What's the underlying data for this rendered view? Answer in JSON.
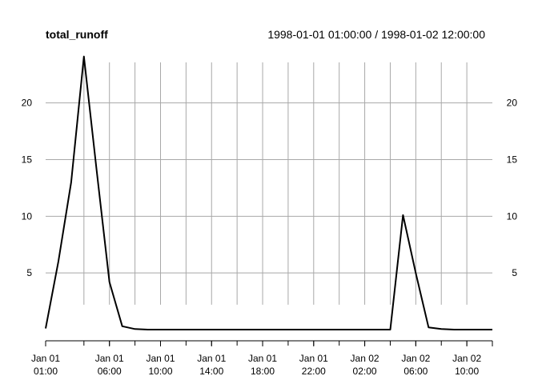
{
  "chart_data": {
    "type": "line",
    "title": "total_runoff",
    "date_range_label": "1998-01-01 01:00:00 / 1998-01-02 12:00:00",
    "x_start": "1998-01-01 01:00",
    "x_end": "1998-01-02 12:00",
    "ylim": [
      0,
      24
    ],
    "grid": true,
    "y_ticks": [
      5,
      10,
      15,
      20
    ],
    "y_tick_labels": [
      "5",
      "10",
      "15",
      "20"
    ],
    "x_ticks": [
      {
        "line1": "Jan 01",
        "line2": "01:00",
        "time": "1998-01-01 01:00"
      },
      {
        "line1": "Jan 01",
        "line2": "06:00",
        "time": "1998-01-01 06:00"
      },
      {
        "line1": "Jan 01",
        "line2": "10:00",
        "time": "1998-01-01 10:00"
      },
      {
        "line1": "Jan 01",
        "line2": "14:00",
        "time": "1998-01-01 14:00"
      },
      {
        "line1": "Jan 01",
        "line2": "18:00",
        "time": "1998-01-01 18:00"
      },
      {
        "line1": "Jan 01",
        "line2": "22:00",
        "time": "1998-01-01 22:00"
      },
      {
        "line1": "Jan 02",
        "line2": "02:00",
        "time": "1998-01-02 02:00"
      },
      {
        "line1": "Jan 02",
        "line2": "06:00",
        "time": "1998-01-02 06:00"
      },
      {
        "line1": "Jan 02",
        "line2": "10:00",
        "time": "1998-01-02 10:00"
      }
    ],
    "series": [
      {
        "color": "#000000",
        "x": [
          "1998-01-01 01:00",
          "1998-01-01 02:00",
          "1998-01-01 03:00",
          "1998-01-01 04:00",
          "1998-01-01 05:00",
          "1998-01-01 06:00",
          "1998-01-01 07:00",
          "1998-01-01 08:00",
          "1998-01-01 09:00",
          "1998-01-01 10:00",
          "1998-01-01 11:00",
          "1998-01-01 12:00",
          "1998-01-01 13:00",
          "1998-01-01 14:00",
          "1998-01-01 15:00",
          "1998-01-01 16:00",
          "1998-01-01 17:00",
          "1998-01-01 18:00",
          "1998-01-01 19:00",
          "1998-01-01 20:00",
          "1998-01-01 21:00",
          "1998-01-01 22:00",
          "1998-01-01 23:00",
          "1998-01-02 00:00",
          "1998-01-02 01:00",
          "1998-01-02 02:00",
          "1998-01-02 03:00",
          "1998-01-02 04:00",
          "1998-01-02 05:00",
          "1998-01-02 06:00",
          "1998-01-02 07:00",
          "1998-01-02 08:00",
          "1998-01-02 09:00",
          "1998-01-02 10:00",
          "1998-01-02 11:00",
          "1998-01-02 12:00"
        ],
        "values": [
          0.1,
          6.0,
          13.0,
          24.1,
          14.0,
          4.2,
          0.3,
          0.05,
          0,
          0,
          0,
          0,
          0,
          0,
          0,
          0,
          0,
          0,
          0,
          0,
          0,
          0,
          0,
          0,
          0,
          0,
          0,
          0,
          10.1,
          5.0,
          0.2,
          0.05,
          0,
          0,
          0,
          0
        ]
      }
    ]
  }
}
